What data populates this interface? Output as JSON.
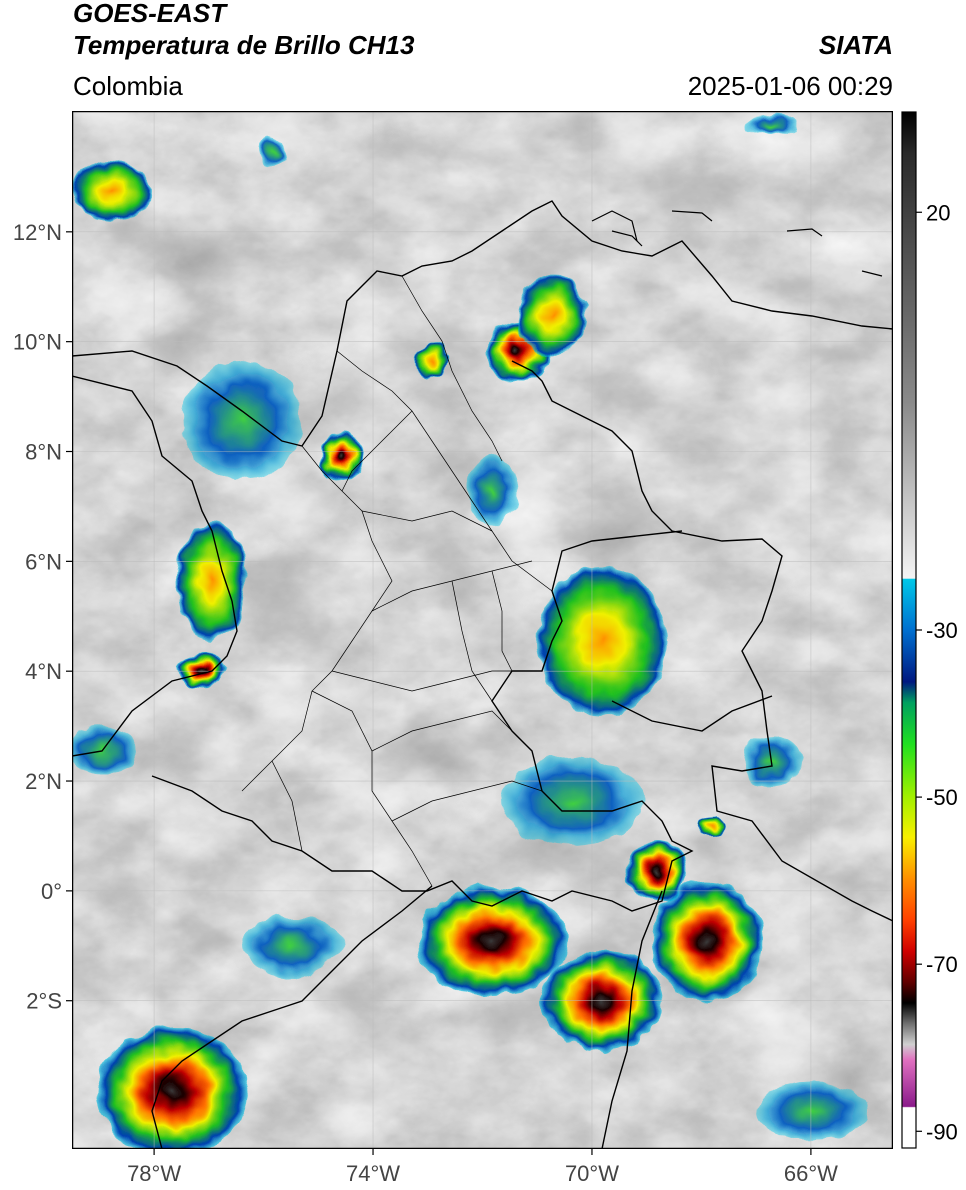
{
  "header": {
    "satellite": "GOES-EAST",
    "product": "Temperatura de Brillo CH13",
    "region": "Colombia",
    "organization": "SIATA",
    "timestamp": "2025-01-06 00:29"
  },
  "map": {
    "lon_range": [
      -79.5,
      -64.5
    ],
    "lat_range": [
      -4.7,
      14.2
    ],
    "lat_ticks": [
      {
        "value": 12,
        "label": "12°N"
      },
      {
        "value": 10,
        "label": "10°N"
      },
      {
        "value": 8,
        "label": "8°N"
      },
      {
        "value": 6,
        "label": "6°N"
      },
      {
        "value": 4,
        "label": "4°N"
      },
      {
        "value": 2,
        "label": "2°N"
      },
      {
        "value": 0,
        "label": "0°"
      },
      {
        "value": -2,
        "label": "2°S"
      }
    ],
    "lon_ticks": [
      {
        "value": -78,
        "label": "78°W"
      },
      {
        "value": -74,
        "label": "74°W"
      },
      {
        "value": -70,
        "label": "70°W"
      },
      {
        "value": -66,
        "label": "66°W"
      }
    ],
    "grid": true
  },
  "colorbar": {
    "range": [
      -92,
      32
    ],
    "ticks": [
      {
        "value": 20,
        "label": "20"
      },
      {
        "value": -30,
        "label": "-30"
      },
      {
        "value": -50,
        "label": "-50"
      },
      {
        "value": -70,
        "label": "-70"
      },
      {
        "value": -90,
        "label": "-90"
      }
    ],
    "colors": {
      "warm": "#ffffff",
      "cyan": "#00c8e8",
      "blue": "#0030a0",
      "green": "#20c020",
      "yellow": "#f8f000",
      "orange": "#ff8000",
      "red": "#d00000",
      "dark": "#2a0000",
      "magenta": "#d040c0"
    }
  }
}
